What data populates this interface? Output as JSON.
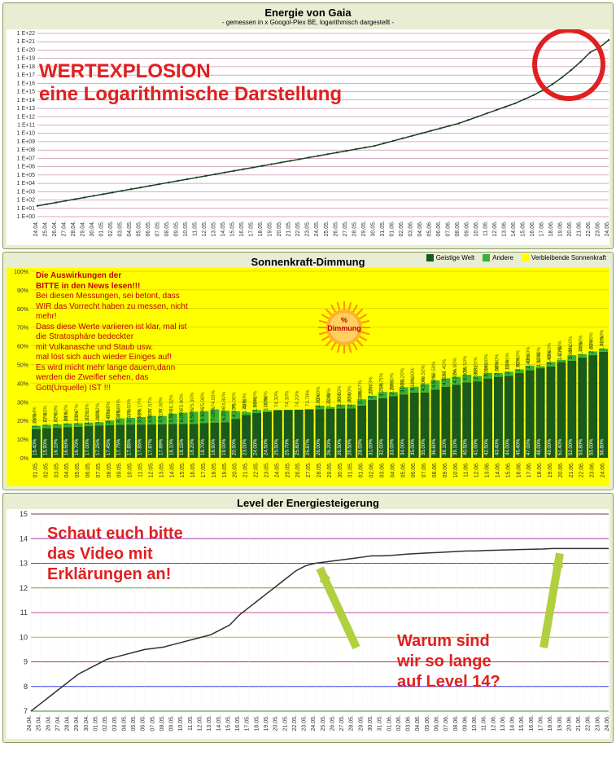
{
  "chart1": {
    "type": "line",
    "title": "Energie von Gaia",
    "subtitle": "- gemessen in x Googol-Plex BE, logarithmisch dargestellt -",
    "title_fontsize": 13,
    "subtitle_fontsize": 8,
    "panel_bg": "#e8edd4",
    "plot_bg": "#ffffff",
    "grid_major": "#993366",
    "grid_minor": "#e0e0e0",
    "line_color": "#1a4020",
    "line_width": 1.5,
    "y_log": true,
    "ylim": [
      1,
      1e+22
    ],
    "y_ticks": [
      "1 E+00",
      "1 E+01",
      "1 E+02",
      "1 E+03",
      "1 E+04",
      "1 E+05",
      "1 E+06",
      "1 E+07",
      "1 E+08",
      "1 E+09",
      "1 E+10",
      "1 E+11",
      "1 E+12",
      "1 E+13",
      "1 E+14",
      "1 E+15",
      "1 E+16",
      "1 E+17",
      "1 E+18",
      "1 E+19",
      "1 E+20",
      "1 E+21",
      "1 E+22"
    ],
    "x_labels": [
      "24.04.",
      "25.04.",
      "26.04.",
      "27.04.",
      "28.04.",
      "29.04.",
      "30.04.",
      "01.05.",
      "02.05.",
      "03.05.",
      "04.05.",
      "05.05.",
      "06.05.",
      "07.05.",
      "08.05.",
      "09.05.",
      "10.05.",
      "11.05.",
      "12.05.",
      "13.05.",
      "14.05.",
      "15.05.",
      "16.05.",
      "17.05.",
      "18.05.",
      "19.05.",
      "20.05.",
      "21.05.",
      "22.05.",
      "23.05.",
      "24.05.",
      "25.05.",
      "26.05.",
      "27.05.",
      "28.05.",
      "29.05.",
      "30.05.",
      "31.05.",
      "01.06.",
      "02.06.",
      "03.06.",
      "04.06.",
      "05.06.",
      "06.06.",
      "07.06.",
      "08.06.",
      "09.06.",
      "10.06.",
      "11.06.",
      "12.06.",
      "13.06.",
      "14.06.",
      "15.06.",
      "16.06.",
      "17.06.",
      "18.06.",
      "19.06.",
      "20.06.",
      "21.06.",
      "22.06.",
      "23.06.",
      "24.06."
    ],
    "y_exp": [
      1.3,
      1.5,
      1.7,
      1.9,
      2.1,
      2.3,
      2.5,
      2.7,
      2.9,
      3.1,
      3.3,
      3.5,
      3.7,
      3.9,
      4.1,
      4.3,
      4.5,
      4.7,
      4.9,
      5.1,
      5.3,
      5.5,
      5.7,
      5.9,
      6.1,
      6.3,
      6.5,
      6.7,
      6.9,
      7.1,
      7.3,
      7.5,
      7.7,
      7.9,
      8.1,
      8.3,
      8.5,
      8.8,
      9.1,
      9.4,
      9.7,
      10.0,
      10.3,
      10.6,
      10.9,
      11.2,
      11.6,
      12.0,
      12.4,
      12.8,
      13.2,
      13.6,
      14.1,
      14.6,
      15.2,
      15.9,
      16.7,
      17.6,
      18.6,
      19.7,
      20.3,
      21.2
    ],
    "annotations": {
      "overlay_text1": "WERTEXPLOSION",
      "overlay_text2": "eine Logarithmische Darstellung",
      "overlay_color": "#e02020",
      "overlay_fontsize": 24,
      "circle_color": "#e02020",
      "circle_stroke": 6
    },
    "x_label_fontsize": 7,
    "y_label_fontsize": 7
  },
  "chart2": {
    "type": "stacked-bar",
    "title": "Sonnenkraft-Dimmung",
    "panel_bg": "#e8edd4",
    "plot_bg": "#ffff00",
    "grid_color": "#ccaa00",
    "legend": [
      {
        "label": "Geistige Welt",
        "color": "#1a5a1a"
      },
      {
        "label": "Andere",
        "color": "#3ab03a"
      },
      {
        "label": "Verbleibende Sonnenkraft",
        "color": "#ffff00"
      }
    ],
    "x_labels": [
      "01.05.",
      "02.05.",
      "03.05.",
      "04.05.",
      "05.05.",
      "06.05.",
      "07.05.",
      "08.05.",
      "09.05.",
      "10.05.",
      "11.05.",
      "12.05.",
      "13.05.",
      "14.05.",
      "15.05.",
      "16.05.",
      "17.05.",
      "18.05.",
      "19.05.",
      "20.05.",
      "21.05.",
      "22.05.",
      "23.05.",
      "24.05.",
      "25.05.",
      "26.05.",
      "27.05.",
      "28.05.",
      "29.05.",
      "30.05.",
      "31.05.",
      "01.06.",
      "02.06.",
      "03.06.",
      "04.06.",
      "05.06.",
      "06.06.",
      "07.06.",
      "08.06.",
      "09.06.",
      "10.06.",
      "11.06.",
      "12.06.",
      "13.06.",
      "14.06.",
      "15.06.",
      "16.06.",
      "17.06.",
      "18.06.",
      "19.06.",
      "20.06.",
      "21.06.",
      "22.06.",
      "23.06.",
      "24.06."
    ],
    "y_ticks": [
      0,
      10,
      20,
      30,
      40,
      50,
      60,
      70,
      80,
      90,
      100
    ],
    "geistige": [
      15.4,
      15.9,
      16.1,
      16.5,
      16.7,
      17.0,
      17.25,
      17.45,
      17.75,
      17.85,
      17.85,
      17.87,
      17.89,
      18.1,
      18.15,
      18.2,
      18.7,
      18.9,
      19.0,
      20.9,
      23.0,
      24.0,
      24.5,
      25.5,
      25.7,
      25.8,
      25.87,
      26.0,
      26.2,
      26.5,
      26.5,
      28.0,
      31.0,
      32.0,
      33.0,
      34.0,
      35.0,
      35.0,
      36.6,
      38.1,
      39.1,
      40.5,
      41.0,
      42.5,
      43.4,
      44.0,
      45.4,
      47.0,
      48.0,
      49.0,
      51.4,
      52.0,
      53.8,
      55.0,
      56.8
    ],
    "andere": [
      1.76,
      1.77,
      1.87,
      1.88,
      1.83,
      1.87,
      1.83,
      2.47,
      3.36,
      3.55,
      3.98,
      4.56,
      4.51,
      5.58,
      6.05,
      6.5,
      6.3,
      7.05,
      6.2,
      4.1,
      1.4,
      1.6,
      1.0,
      0.2,
      0.0,
      0.0,
      0.35,
      2.0,
      1.0,
      2.0,
      2.0,
      3.33,
      2.27,
      3.25,
      2.2,
      3.8,
      3.1,
      4.5,
      4.9,
      4.5,
      4.3,
      4.0,
      2.8,
      3.0,
      2.0,
      2.1,
      2.0,
      2.4,
      1.1,
      2.4,
      1.1,
      3.0,
      1.7,
      2.0,
      1.7
    ],
    "verbleibend": [
      82.84,
      82.33,
      82.03,
      81.62,
      81.47,
      81.13,
      80.92,
      80.08,
      78.89,
      78.6,
      78.17,
      77.57,
      77.6,
      76.32,
      75.8,
      75.3,
      75.0,
      74.05,
      74.8,
      75.0,
      75.6,
      74.4,
      74.5,
      74.3,
      74.3,
      74.2,
      73.78,
      72.0,
      72.8,
      71.5,
      71.5,
      68.67,
      66.73,
      64.75,
      64.8,
      62.2,
      61.9,
      60.5,
      58.5,
      57.4,
      56.6,
      55.5,
      56.2,
      54.5,
      54.6,
      53.9,
      52.6,
      50.6,
      50.9,
      48.6,
      47.5,
      45.0,
      44.5,
      43.0,
      41.5
    ],
    "sun_badge": {
      "text": "%\nDimmung",
      "color": "#ff8800",
      "text_color": "#cc0000"
    },
    "overlay_lines": [
      {
        "text": "Die Auswirkungen der",
        "bold": true,
        "color": "#c00000"
      },
      {
        "text": " BITTE in den News lesen!!!",
        "bold": true,
        "color": "#c00000"
      },
      {
        "text": "Bei diesen Messungen, sei betont, dass",
        "color": "#c00000"
      },
      {
        "text": "WIR das Vorrecht haben zu messen, nicht",
        "color": "#c00000"
      },
      {
        "text": "mehr!",
        "color": "#c00000"
      },
      {
        "text": "Dass diese Werte variieren ist klar, mal ist",
        "color": "#c00000"
      },
      {
        "text": "die Stratosphäre bedeckter",
        "color": "#c00000"
      },
      {
        "text": " mit Vulkanasche und Staub usw.",
        "color": "#c00000"
      },
      {
        "text": "mal löst sich auch wieder Einiges auf!",
        "color": "#c00000"
      },
      {
        "text": "Es wird micht mehr lange dauern,dann",
        "color": "#c00000"
      },
      {
        "text": "werden die Zweifler sehen, das",
        "color": "#c00000"
      },
      {
        "text": "Gott(Urquelle) IST !!!",
        "color": "#c00000"
      }
    ],
    "overlay_fontsize": 10,
    "x_label_fontsize": 7,
    "bar_label_fontsize": 6,
    "bar_label_color": "#ffffff"
  },
  "chart3": {
    "type": "line",
    "title": "Level der Energiesteigerung",
    "panel_bg": "#e8edd4",
    "plot_bg": "#ffffff",
    "line_color": "#303030",
    "line_width": 1.5,
    "ylim": [
      7,
      15
    ],
    "y_ticks": [
      7,
      8,
      9,
      10,
      11,
      12,
      13,
      14,
      15
    ],
    "h_rule_colors": [
      "#3a8a3a",
      "#3a3ae0",
      "#a03a3a",
      "#d0b020",
      "#c04a90",
      "#60a040",
      "#3055c0",
      "#a03aa0",
      "#7a3a3a"
    ],
    "x_labels": [
      "24.04.",
      "25.04.",
      "26.04.",
      "27.04.",
      "28.04.",
      "29.04.",
      "30.04.",
      "01.05.",
      "02.05.",
      "03.05.",
      "04.05.",
      "05.05.",
      "06.05.",
      "07.05.",
      "08.05.",
      "09.05.",
      "10.05.",
      "11.05.",
      "12.05.",
      "13.05.",
      "14.05.",
      "15.05.",
      "16.05.",
      "17.05.",
      "18.05.",
      "19.05.",
      "20.05.",
      "21.05.",
      "22.05.",
      "23.05.",
      "24.05.",
      "25.05.",
      "26.05.",
      "27.05.",
      "28.05.",
      "29.05.",
      "30.05.",
      "31.05.",
      "01.06.",
      "02.06.",
      "03.06.",
      "04.06.",
      "05.06.",
      "06.06.",
      "07.06.",
      "08.06.",
      "09.06.",
      "10.06.",
      "11.06.",
      "12.06.",
      "13.06.",
      "14.06.",
      "15.06.",
      "16.06.",
      "17.06.",
      "18.06.",
      "19.06.",
      "20.06.",
      "21.06.",
      "22.06.",
      "23.06.",
      "24.06."
    ],
    "y_values": [
      7.0,
      7.3,
      7.6,
      7.9,
      8.2,
      8.5,
      8.7,
      8.9,
      9.1,
      9.2,
      9.3,
      9.4,
      9.5,
      9.55,
      9.6,
      9.7,
      9.8,
      9.9,
      10.0,
      10.1,
      10.3,
      10.5,
      10.9,
      11.2,
      11.5,
      11.8,
      12.1,
      12.4,
      12.7,
      12.9,
      13.0,
      13.05,
      13.1,
      13.15,
      13.2,
      13.25,
      13.3,
      13.3,
      13.32,
      13.35,
      13.38,
      13.4,
      13.42,
      13.44,
      13.46,
      13.48,
      13.5,
      13.5,
      13.52,
      13.53,
      13.54,
      13.55,
      13.56,
      13.57,
      13.58,
      13.6,
      13.6,
      13.6,
      13.6,
      13.6,
      13.6,
      13.6
    ],
    "overlay1": "Schaut euch bitte\ndas Video mit\nErklärungen an!",
    "overlay2": "Warum sind\nwir so lange\nauf Level 14?",
    "overlay_color": "#e02020",
    "overlay_fontsize": 20,
    "arrow_color": "#b0d040",
    "x_label_fontsize": 7,
    "y_label_fontsize": 9
  }
}
